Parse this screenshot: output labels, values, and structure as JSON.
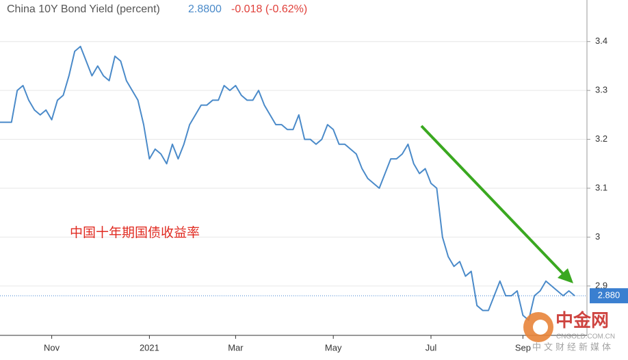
{
  "chart_data": {
    "type": "line",
    "title": "China 10Y Bond Yield (percent)",
    "price": "2.8800",
    "change": "-0.018 (-0.62%)",
    "annotation": "中国十年期国债收益率",
    "watermark": {
      "name": "中金网",
      "url": "CNGOLD.COM.CN",
      "tagline": "中文财经新媒体"
    },
    "categories": [
      null,
      null,
      null,
      null,
      null,
      null,
      null,
      null,
      null,
      "Nov",
      null,
      null,
      null,
      null,
      null,
      null,
      null,
      null,
      null,
      null,
      null,
      null,
      null,
      null,
      null,
      null,
      "2021",
      null,
      null,
      null,
      null,
      null,
      null,
      null,
      null,
      null,
      null,
      null,
      null,
      null,
      null,
      "Mar",
      null,
      null,
      null,
      null,
      null,
      null,
      null,
      null,
      null,
      null,
      null,
      null,
      null,
      null,
      null,
      null,
      "May",
      null,
      null,
      null,
      null,
      null,
      null,
      null,
      null,
      null,
      null,
      null,
      null,
      null,
      null,
      null,
      null,
      "Jul",
      null,
      null,
      null,
      null,
      null,
      null,
      null,
      null,
      null,
      null,
      null,
      null,
      null,
      null,
      null,
      "Sep",
      null,
      null,
      null,
      null,
      null,
      null,
      null,
      null,
      null
    ],
    "series": [
      {
        "name": "China 10Y",
        "color": "#4a8ac9",
        "values": [
          3.235,
          3.235,
          3.235,
          3.3,
          3.31,
          3.28,
          3.26,
          3.25,
          3.26,
          3.24,
          3.28,
          3.29,
          3.33,
          3.38,
          3.39,
          3.36,
          3.33,
          3.35,
          3.33,
          3.32,
          3.37,
          3.36,
          3.32,
          3.3,
          3.28,
          3.23,
          3.16,
          3.18,
          3.17,
          3.15,
          3.19,
          3.16,
          3.19,
          3.23,
          3.25,
          3.27,
          3.27,
          3.28,
          3.28,
          3.31,
          3.3,
          3.31,
          3.29,
          3.28,
          3.28,
          3.3,
          3.27,
          3.25,
          3.23,
          3.23,
          3.22,
          3.22,
          3.25,
          3.2,
          3.2,
          3.19,
          3.2,
          3.23,
          3.22,
          3.19,
          3.19,
          3.18,
          3.17,
          3.14,
          3.12,
          3.11,
          3.1,
          3.13,
          3.16,
          3.16,
          3.17,
          3.19,
          3.15,
          3.13,
          3.14,
          3.11,
          3.1,
          3.0,
          2.96,
          2.94,
          2.95,
          2.92,
          2.93,
          2.86,
          2.85,
          2.85,
          2.88,
          2.91,
          2.88,
          2.88,
          2.89,
          2.84,
          2.83,
          2.88,
          2.89,
          2.91,
          2.9,
          2.89,
          2.88,
          2.89,
          2.88
        ]
      }
    ],
    "price_line": {
      "value": 2.88,
      "label": "2.880",
      "color": "#3a7fd0"
    },
    "ylim": [
      2.799,
      3.485
    ],
    "yticks": [
      3.4,
      3.3,
      3.2,
      3.1,
      3,
      2.9
    ],
    "grid": true
  }
}
